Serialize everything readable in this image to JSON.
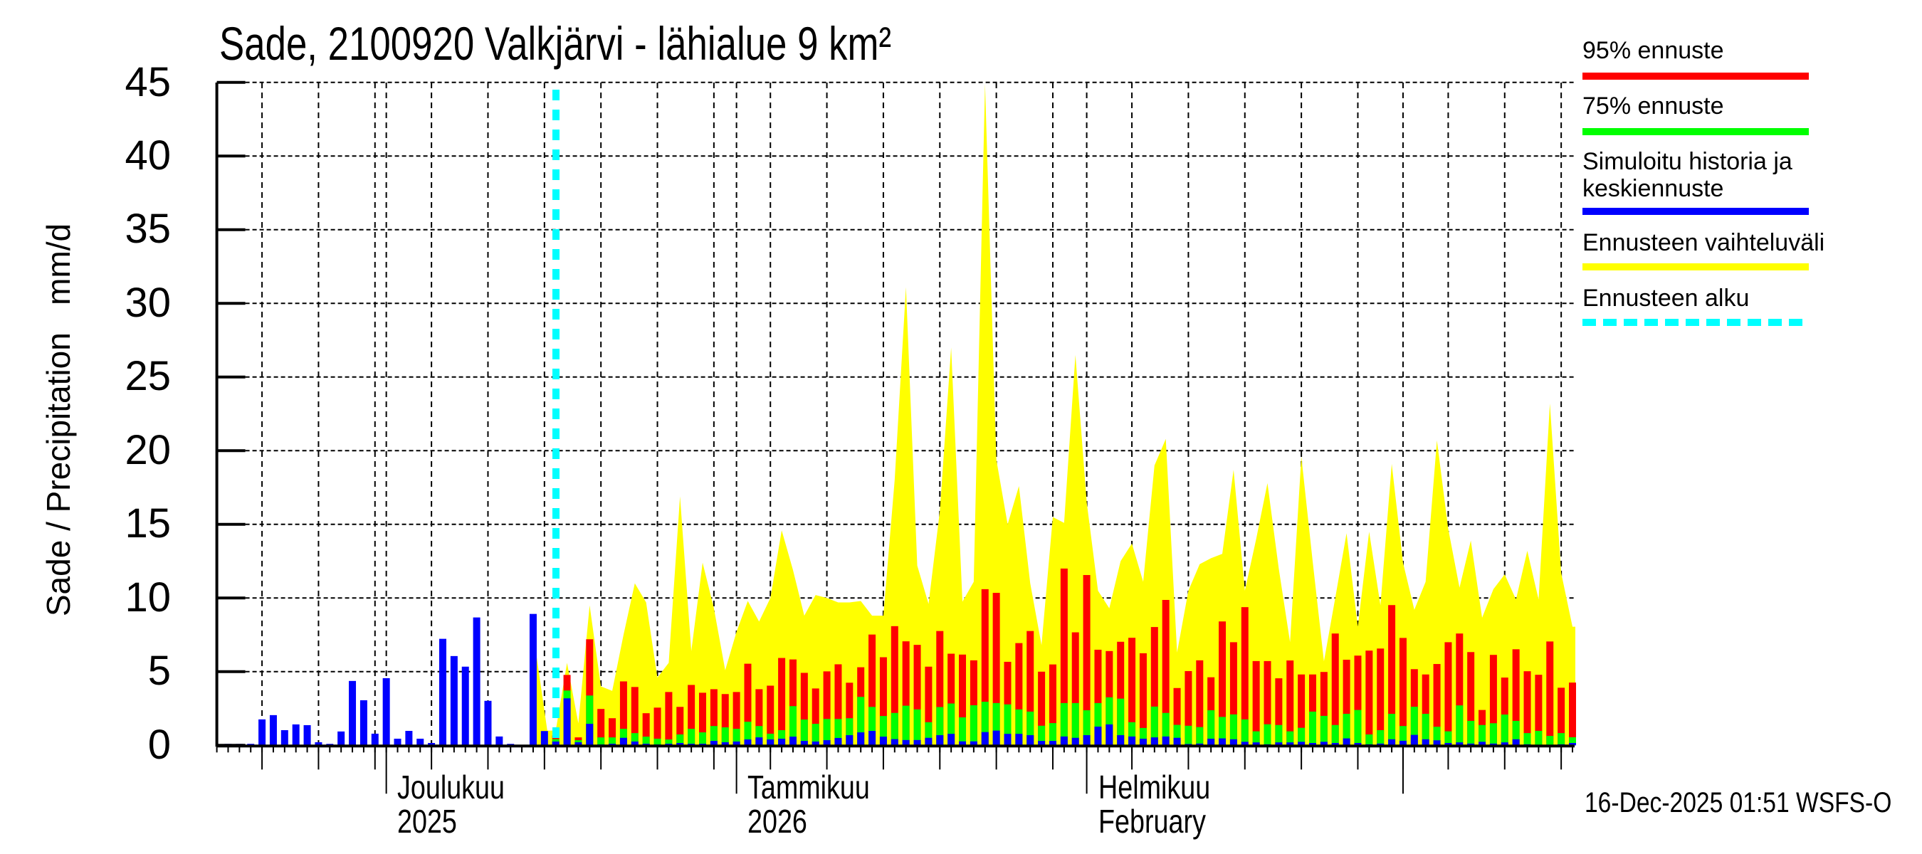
{
  "title": "Sade, 2100920 Valkjärvi - lähialue 9 km²",
  "y_axis_label": "Sade / Precipitation   mm/d",
  "y_ticks": [
    "45",
    "40",
    "35",
    "30",
    "25",
    "20",
    "15",
    "10",
    "5",
    "0"
  ],
  "x_labels": [
    {
      "line1": "Joulukuu",
      "line2": "2025"
    },
    {
      "line1": "Tammikuu",
      "line2": "2026"
    },
    {
      "line1": "Helmikuu",
      "line2": "February"
    }
  ],
  "legend": {
    "items": [
      {
        "label": "95% ennuste",
        "color": "#ff0000",
        "style": "solid"
      },
      {
        "label": "75% ennuste",
        "color": "#00ff00",
        "style": "solid"
      },
      {
        "label": "Simuloitu historia ja\nkeskiennuste",
        "label_line1": "Simuloitu historia ja",
        "label_line2": "keskiennuste",
        "color": "#0000ff",
        "style": "solid"
      },
      {
        "label": "Ennusteen vaihteluväli",
        "color": "#ffff00",
        "style": "solid"
      },
      {
        "label": "Ennusteen alku",
        "color": "#00ffff",
        "style": "dashed"
      }
    ]
  },
  "timestamp": "16-Dec-2025 01:51 WSFS-O",
  "colors": {
    "p95": "#ff0000",
    "p75": "#00ff00",
    "median": "#0000ff",
    "range": "#ffff00",
    "forecast_start": "#00ffff",
    "grid": "#000000"
  },
  "chart_data": {
    "type": "bar",
    "title": "Sade, 2100920 Valkjärvi - lähialue 9 km²",
    "xlabel": "",
    "ylabel": "Sade / Precipitation mm/d",
    "ylim": [
      0,
      45
    ],
    "y_ticks": [
      0,
      5,
      10,
      15,
      20,
      25,
      30,
      35,
      40,
      45
    ],
    "grid": true,
    "legend_position": "right",
    "x_start_date": "2025-11-16",
    "x_end_date": "2026-03-16",
    "forecast_start_date": "2025-12-16",
    "month_labels": [
      "Joulukuu 2025",
      "Tammikuu 2026",
      "Helmikuu February"
    ],
    "history": {
      "name": "Simuloitu historia ja keskiennuste",
      "start_date": "2025-11-17",
      "values": [
        0.05,
        0.05,
        0.1,
        1.76,
        2.05,
        1.03,
        1.42,
        1.37,
        0.21,
        0.05,
        0.94,
        4.37,
        3.06,
        0.79,
        4.56,
        0.45,
        0.98,
        0.45,
        0.16,
        7.23,
        6.06,
        5.34,
        8.68,
        3.02,
        0.6,
        0.05,
        0,
        8.92,
        0.97
      ]
    },
    "forecast": {
      "start_date": "2025-12-16",
      "series": [
        {
          "name": "Simuloitu historia ja keskiennuste",
          "values": [
            0.26,
            3.19,
            0.21,
            1.46,
            0.06,
            0.11,
            0.51,
            0.26,
            0.11,
            0.06,
            0.11,
            0.16,
            0.11,
            0.11,
            0.3,
            0.21,
            0.26,
            0.4,
            0.54,
            0.4,
            0.45,
            0.59,
            0.3,
            0.26,
            0.35,
            0.5,
            0.69,
            0.88,
            0.98,
            0.59,
            0.42,
            0.36,
            0.36,
            0.51,
            0.69,
            0.78,
            0.27,
            0.27,
            0.9,
            1.0,
            0.78,
            0.78,
            0.69,
            0.3,
            0.3,
            0.6,
            0.51,
            0.69,
            1.27,
            1.42,
            0.69,
            0.6,
            0.45,
            0.54,
            0.6,
            0.51,
            0.09,
            0.12,
            0.45,
            0.47,
            0.41,
            0.24,
            0.2,
            0.07,
            0.2,
            0.2,
            0.24,
            0.16,
            0.24,
            0.16,
            0.47,
            0.16,
            0.07,
            0.12,
            0.41,
            0.31,
            0.71,
            0.41,
            0.34,
            0.16,
            0.2,
            0.12,
            0.24,
            0.12,
            0.2,
            0.41,
            0.07,
            0.03,
            0.03,
            0.07,
            0.16
          ]
        },
        {
          "name": "75% ennuste",
          "values": [
            0.42,
            3.72,
            0.35,
            3.38,
            0.54,
            0.54,
            1.12,
            0.83,
            0.59,
            0.45,
            0.4,
            0.74,
            1.12,
            0.88,
            1.31,
            1.22,
            1.12,
            1.6,
            1.31,
            0.79,
            1.03,
            2.66,
            1.75,
            1.46,
            1.79,
            1.79,
            1.84,
            3.29,
            2.61,
            1.99,
            2.2,
            2.69,
            2.44,
            1.57,
            2.6,
            2.84,
            1.9,
            2.72,
            2.96,
            2.87,
            2.78,
            2.44,
            2.29,
            1.33,
            1.51,
            2.87,
            2.87,
            2.38,
            2.87,
            3.26,
            3.17,
            1.57,
            1.18,
            2.63,
            2.2,
            1.39,
            1.33,
            1.24,
            2.38,
            1.93,
            2.1,
            1.76,
            0.95,
            1.43,
            1.38,
            0.95,
            1.19,
            2.29,
            2.0,
            1.38,
            2.14,
            2.4,
            0.74,
            1.03,
            2.14,
            1.31,
            2.62,
            2.14,
            1.26,
            0.95,
            2.71,
            1.66,
            1.38,
            1.5,
            2.09,
            1.66,
            0.83,
            0.98,
            0.64,
            0.83,
            0.55
          ]
        },
        {
          "name": "95% ennuste",
          "values": [
            0.67,
            4.78,
            0.54,
            7.2,
            2.47,
            1.84,
            4.34,
            3.96,
            2.18,
            2.56,
            3.62,
            2.61,
            4.1,
            3.57,
            3.81,
            3.48,
            3.62,
            5.54,
            3.81,
            4.05,
            5.93,
            5.83,
            4.92,
            3.86,
            5.02,
            5.5,
            4.25,
            5.3,
            7.52,
            5.98,
            8.09,
            7.06,
            6.82,
            5.34,
            7.76,
            6.22,
            6.16,
            5.77,
            10.6,
            10.35,
            5.67,
            6.94,
            7.76,
            5.0,
            5.49,
            12.0,
            7.67,
            11.56,
            6.49,
            6.4,
            7.03,
            7.3,
            6.25,
            8.03,
            9.87,
            3.89,
            5.04,
            5.77,
            4.62,
            8.41,
            7.0,
            9.38,
            5.72,
            5.72,
            4.55,
            5.76,
            4.81,
            4.81,
            4.98,
            7.59,
            5.81,
            6.09,
            6.43,
            6.57,
            9.52,
            7.29,
            5.17,
            4.81,
            5.52,
            7.0,
            7.59,
            6.33,
            2.4,
            6.14,
            4.6,
            6.52,
            5.03,
            4.79,
            7.05,
            3.91,
            4.26
          ]
        },
        {
          "name": "Ennusteen vaihteluväli (max)",
          "values": [
            1.0,
            5.6,
            1.5,
            9.5,
            4.0,
            3.7,
            7.5,
            11.0,
            9.7,
            4.6,
            5.6,
            16.9,
            6.4,
            12.4,
            9.3,
            5.1,
            7.7,
            9.8,
            8.4,
            10.0,
            14.6,
            11.9,
            8.8,
            10.2,
            10.0,
            9.7,
            9.7,
            9.8,
            8.8,
            8.8,
            18.0,
            31.1,
            12.2,
            9.6,
            15.9,
            27.0,
            9.75,
            11.1,
            44.9,
            19.4,
            15.0,
            17.6,
            11.0,
            6.8,
            15.5,
            15.1,
            26.5,
            16.5,
            10.5,
            9.3,
            12.5,
            13.7,
            11.1,
            19.0,
            20.8,
            6.3,
            10.5,
            12.3,
            12.7,
            13.0,
            18.7,
            10.5,
            14.0,
            17.8,
            12.0,
            7.0,
            19.6,
            12.5,
            5.7,
            10.0,
            14.4,
            8.05,
            14.5,
            9.5,
            19.1,
            12.4,
            9.2,
            11.1,
            20.7,
            14.7,
            10.7,
            13.9,
            8.66,
            10.6,
            11.6,
            9.9,
            13.2,
            9.9,
            23.2,
            11.7,
            8.05
          ]
        }
      ]
    }
  }
}
